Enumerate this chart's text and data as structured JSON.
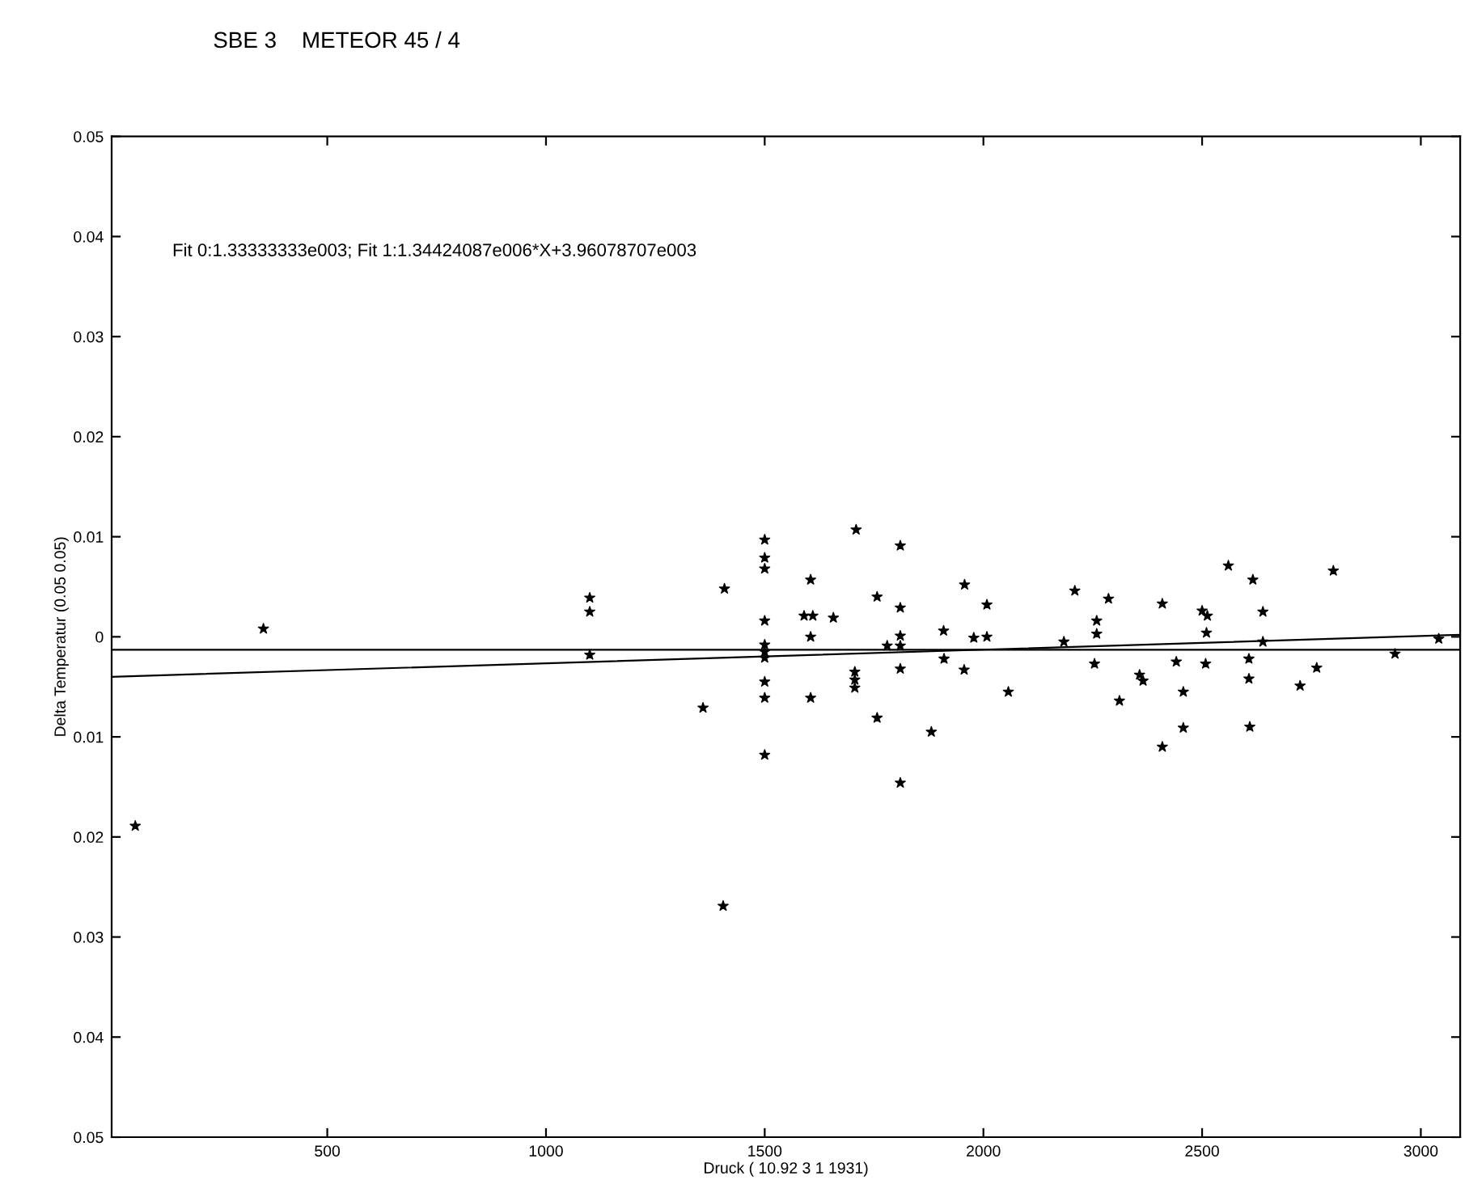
{
  "chart_data": {
    "type": "scatter",
    "title": "SBE 3    METEOR 45 / 4",
    "xlabel": "Druck ( 10.92 3 1 1931)",
    "ylabel": "Delta Temperatur (0.05 0.05)",
    "annotations": [
      "Fit 0:1.33333333e003; Fit 1:1.34424087e006*X+3.96078707e003"
    ],
    "xlim": [
      7,
      3090
    ],
    "xticks": [
      500,
      1000,
      1500,
      2000,
      2500,
      3000
    ],
    "ylim": [
      -0.05,
      0.05
    ],
    "yticks": [
      {
        "value": -0.05,
        "label": "0.05"
      },
      {
        "value": -0.04,
        "label": "0.04"
      },
      {
        "value": -0.03,
        "label": "0.03"
      },
      {
        "value": -0.02,
        "label": "0.02"
      },
      {
        "value": -0.01,
        "label": "0.01"
      },
      0,
      {
        "value": 0.01,
        "label": "0.01"
      },
      {
        "value": 0.02,
        "label": "0.02"
      },
      {
        "value": 0.03,
        "label": "0.03"
      },
      {
        "value": 0.04,
        "label": "0.04"
      },
      {
        "value": 0.05,
        "label": "0.05"
      }
    ],
    "grid": false,
    "legend": false,
    "series": [
      {
        "marker": "star",
        "color": "#000000",
        "x": [
          61,
          354,
          1100,
          1100,
          1100,
          1359,
          1408,
          1405,
          1500,
          1500,
          1500,
          1500,
          1500,
          1500,
          1500,
          1500,
          1500,
          1500,
          1605,
          1590,
          1610,
          1657,
          1605,
          1605,
          1709,
          1706,
          1706,
          1706,
          1757,
          1757,
          1780,
          1810,
          1810,
          1810,
          1810,
          1810,
          1810,
          1881,
          1909,
          1910,
          1957,
          1956,
          1978,
          2008,
          2008,
          2057,
          2184,
          2209,
          2259,
          2259,
          2254,
          2286,
          2311,
          2357,
          2365,
          2409,
          2409,
          2441,
          2457,
          2457,
          2500,
          2512,
          2510,
          2508,
          2560,
          2616,
          2607,
          2607,
          2609,
          2639,
          2639,
          2724,
          2762,
          2800,
          2941,
          3041
        ],
        "values": [
          -0.0189,
          0.0008,
          0.0039,
          0.0025,
          -0.0018,
          -0.0071,
          0.0048,
          -0.0269,
          0.0097,
          0.0079,
          0.0068,
          0.0016,
          -0.0008,
          -0.0015,
          -0.0021,
          -0.0045,
          -0.0061,
          -0.0118,
          0.0057,
          0.0021,
          0.0021,
          0.0019,
          0.0,
          -0.0061,
          0.0107,
          -0.0035,
          -0.0043,
          -0.0051,
          0.004,
          -0.0081,
          -0.0009,
          0.0091,
          0.0029,
          0.0001,
          -0.0009,
          -0.0032,
          -0.0146,
          -0.0095,
          0.0006,
          -0.0022,
          0.0052,
          -0.0033,
          -0.0001,
          0.0032,
          0.0,
          -0.0055,
          -0.0005,
          0.0046,
          0.0016,
          0.0003,
          -0.0027,
          0.0038,
          -0.0064,
          -0.0038,
          -0.0044,
          0.0033,
          -0.011,
          -0.0025,
          -0.0055,
          -0.0091,
          0.0026,
          0.0021,
          0.0004,
          -0.0027,
          0.0071,
          0.0057,
          -0.0022,
          -0.0042,
          -0.009,
          0.0025,
          -0.0005,
          -0.0049,
          -0.0031,
          0.0066,
          -0.0017,
          -0.0002
        ]
      },
      {
        "type": "line",
        "color": "#000000",
        "x": [
          7,
          3090
        ],
        "values": [
          -0.0013,
          -0.0013
        ]
      },
      {
        "type": "line",
        "color": "#000000",
        "x": [
          7,
          3090
        ],
        "values": [
          -0.004,
          0.0002
        ]
      }
    ]
  }
}
